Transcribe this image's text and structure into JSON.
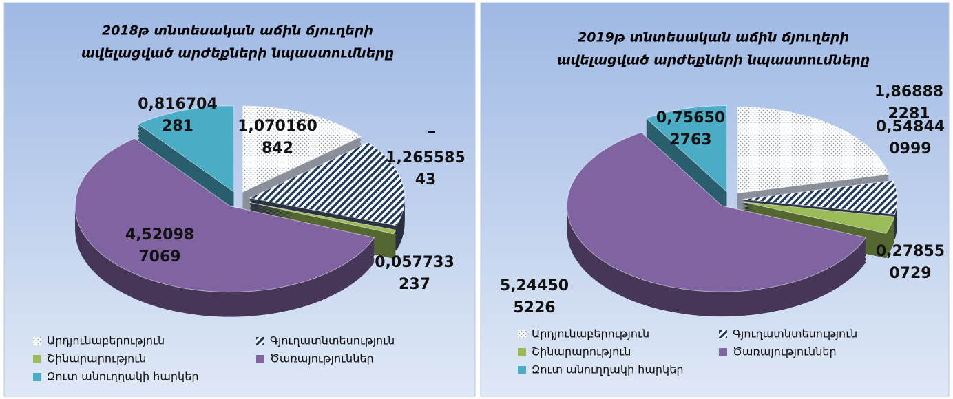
{
  "chart_data": [
    {
      "type": "pie",
      "title": [
        "2018թ տնտեսական աճին ճյուղերի",
        "ավելացված արժեքների նպաստումները"
      ],
      "categories": [
        "Արդյունաբերություն",
        "Գյուղատնտեսություն",
        "Շինարարություն",
        "Ծառայություններ",
        "Զուտ անուղղակի հարկեր"
      ],
      "values": [
        1.070160842,
        1.26558543,
        0.057733237,
        4.520987069,
        0.816704281
      ],
      "value_labels": [
        "1,070160842",
        "1,26558543",
        "0,057733237",
        "4,520987069",
        "0,816704281"
      ],
      "colors": [
        "#ffffff",
        "#1f3a5f",
        "#9bbb59",
        "#8064a2",
        "#4bacc6"
      ]
    },
    {
      "type": "pie",
      "title": [
        "2019թ տնտեսական աճին ճյուղերի",
        "ավելացված արժեքների նպաստումները"
      ],
      "categories": [
        "Արդյունաբերություն",
        "Գյուղատնտեսություն",
        "Շինարարություն",
        "Ծառայություններ",
        "Զուտ անուղղակի հարկեր"
      ],
      "values": [
        1.868882281,
        0.548440999,
        0.278550729,
        5.244505226,
        0.756502763
      ],
      "value_labels": [
        "1,868882281",
        "0,548440999",
        "0,278550729",
        "5,244505226",
        "0,756502763"
      ],
      "colors": [
        "#ffffff",
        "#1f3a5f",
        "#9bbb59",
        "#8064a2",
        "#4bacc6"
      ]
    }
  ]
}
